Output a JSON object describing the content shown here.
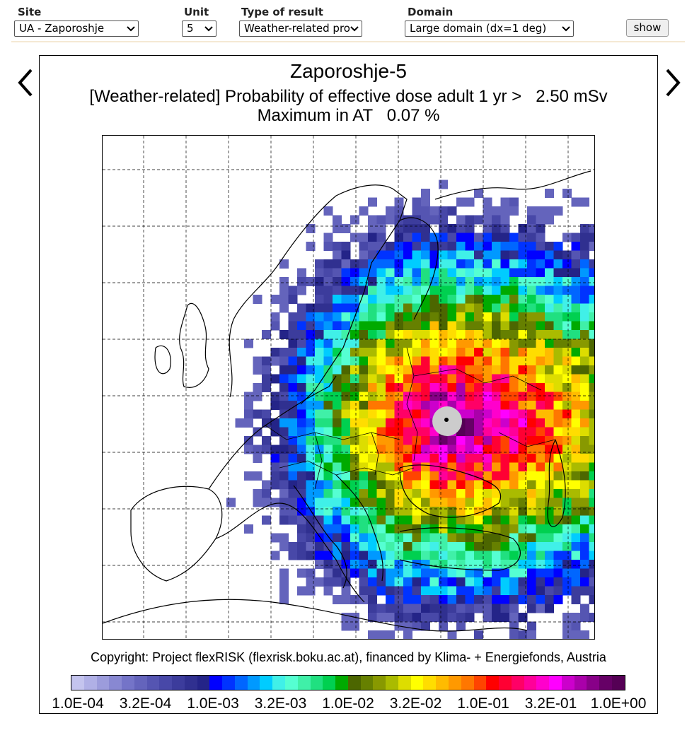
{
  "controls": {
    "site": {
      "label": "Site",
      "value": "UA - Zaporoshje"
    },
    "unit": {
      "label": "Unit",
      "value": "5"
    },
    "result": {
      "label": "Type of result",
      "value": "Weather-related pro"
    },
    "domain": {
      "label": "Domain",
      "value": "Large domain (dx=1 deg)"
    },
    "show_label": "show"
  },
  "nav": {
    "prev_icon": "chevron-left-icon",
    "next_icon": "chevron-right-icon"
  },
  "plot": {
    "title": "Zaporoshje-5",
    "subtitle": "[Weather-related] Probability of effective dose adult 1 yr >   2.50 mSv",
    "maximum": "Maximum in AT   0.07 %",
    "copyright": "Copyright: Project flexRISK (flexrisk.boku.ac.at), financed by Klima- + Energiefonds, Austria"
  },
  "colorbar": {
    "ticks": [
      "1.0E-04",
      "3.2E-04",
      "1.0E-03",
      "3.2E-03",
      "1.0E-02",
      "3.2E-02",
      "1.0E-01",
      "3.2E-01",
      "1.0E+00"
    ],
    "colors": [
      "#c4c4ee",
      "#b0b0e6",
      "#9c9cdc",
      "#8888d2",
      "#7474c8",
      "#6464bc",
      "#5555b2",
      "#4848a8",
      "#3c3c9c",
      "#303090",
      "#242488",
      "#0000ff",
      "#0033ff",
      "#0066ff",
      "#0099ff",
      "#00ccff",
      "#40f0e8",
      "#55ffd2",
      "#40f0a8",
      "#20e080",
      "#00d050",
      "#00aa00",
      "#4c6600",
      "#668000",
      "#889900",
      "#aabb00",
      "#dddd00",
      "#ffff00",
      "#ffdd00",
      "#ffbb00",
      "#ff9900",
      "#ff7700",
      "#ff4400",
      "#ff0000",
      "#ff0033",
      "#ff0066",
      "#ff0099",
      "#ff00cc",
      "#ff00ff",
      "#cc00cc",
      "#aa00aa",
      "#880088",
      "#660066",
      "#550055"
    ],
    "source_color": "#cccccc"
  }
}
